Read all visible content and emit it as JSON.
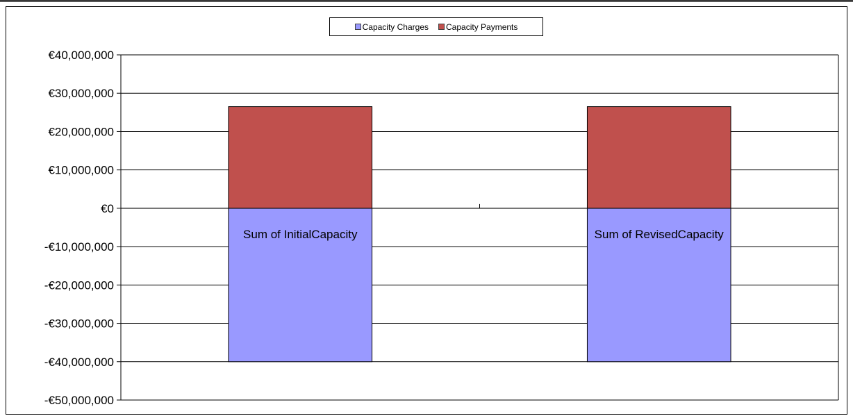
{
  "chart_data": {
    "type": "bar",
    "stacked": true,
    "categories": [
      "Sum of InitialCapacity",
      "Sum of RevisedCapacity"
    ],
    "series": [
      {
        "name": "Capacity Charges",
        "values": [
          -40000000,
          -40000000
        ],
        "color": "#9999ff"
      },
      {
        "name": "Capacity Payments",
        "values": [
          26500000,
          26500000
        ],
        "color": "#c0504d"
      }
    ],
    "ylim": [
      -50000000,
      40000000
    ],
    "yticks": [
      40000000,
      30000000,
      20000000,
      10000000,
      0,
      -10000000,
      -20000000,
      -30000000,
      -40000000,
      -50000000
    ],
    "ytick_labels": [
      "€40,000,000",
      "€30,000,000",
      "€20,000,000",
      "€10,000,000",
      "€0",
      "-€10,000,000",
      "-€20,000,000",
      "-€30,000,000",
      "-€40,000,000",
      "-€50,000,000"
    ],
    "grid": true,
    "legend_placement": "top-center",
    "title": "",
    "xlabel": "",
    "ylabel": ""
  }
}
